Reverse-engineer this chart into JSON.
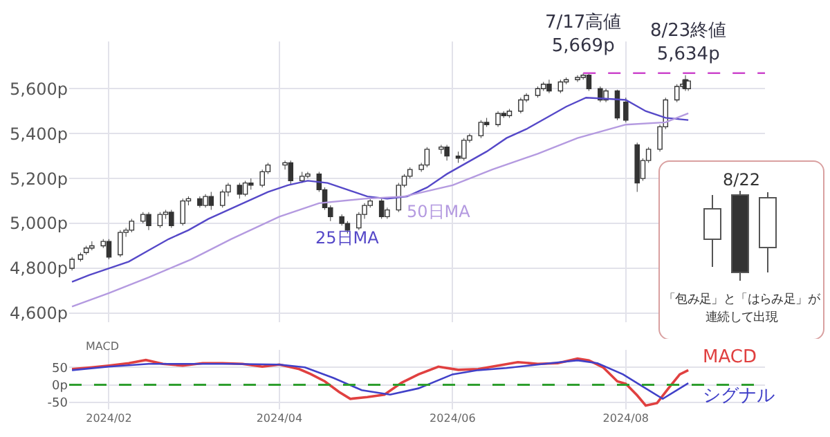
{
  "chart_data": [
    {
      "type": "candlestick",
      "color": "#333333",
      "xlim": [
        "2024-01-18",
        "2024-09-19"
      ],
      "xticks": [
        {
          "value": "2024-02-01",
          "label": null
        },
        {
          "value": "2024-04-01",
          "label": null
        },
        {
          "value": "2024-06-01",
          "label": null
        },
        {
          "value": "2024-08-01",
          "label": null
        }
      ],
      "tick_labels": "y",
      "ylim": [
        4560,
        5810
      ],
      "yticks": [
        {
          "value": 4600,
          "label": "4,600p"
        },
        {
          "value": 4800,
          "label": "4,800p"
        },
        {
          "value": 5000,
          "label": "5,000p"
        },
        {
          "value": 5200,
          "label": "5,200p"
        },
        {
          "value": 5400,
          "label": "5,400p"
        },
        {
          "value": 5600,
          "label": "5,600p"
        }
      ],
      "grid": true,
      "x": [
        "2024-01-19",
        "2024-01-22",
        "2024-01-24",
        "2024-01-26",
        "2024-01-30",
        "2024-02-01",
        "2024-02-05",
        "2024-02-07",
        "2024-02-09",
        "2024-02-13",
        "2024-02-15",
        "2024-02-19",
        "2024-02-21",
        "2024-02-23",
        "2024-02-27",
        "2024-02-29",
        "2024-03-04",
        "2024-03-06",
        "2024-03-08",
        "2024-03-12",
        "2024-03-14",
        "2024-03-18",
        "2024-03-20",
        "2024-03-22",
        "2024-03-26",
        "2024-03-28",
        "2024-04-03",
        "2024-04-05",
        "2024-04-09",
        "2024-04-11",
        "2024-04-15",
        "2024-04-17",
        "2024-04-19",
        "2024-04-23",
        "2024-04-25",
        "2024-04-29",
        "2024-05-01",
        "2024-05-03",
        "2024-05-07",
        "2024-05-09",
        "2024-05-13",
        "2024-05-15",
        "2024-05-17",
        "2024-05-21",
        "2024-05-23",
        "2024-05-28",
        "2024-05-30",
        "2024-06-03",
        "2024-06-05",
        "2024-06-07",
        "2024-06-11",
        "2024-06-13",
        "2024-06-17",
        "2024-06-19",
        "2024-06-21",
        "2024-06-25",
        "2024-06-27",
        "2024-07-01",
        "2024-07-03",
        "2024-07-05",
        "2024-07-09",
        "2024-07-11",
        "2024-07-15",
        "2024-07-17",
        "2024-07-19",
        "2024-07-23",
        "2024-07-25",
        "2024-07-29",
        "2024-08-01",
        "2024-08-05",
        "2024-08-07",
        "2024-08-09",
        "2024-08-13",
        "2024-08-15",
        "2024-08-19",
        "2024-08-21",
        "2024-08-22",
        "2024-08-23"
      ],
      "ohlc": [
        [
          4800,
          4850,
          4790,
          4840
        ],
        [
          4840,
          4870,
          4830,
          4860
        ],
        [
          4870,
          4900,
          4860,
          4890
        ],
        [
          4890,
          4920,
          4880,
          4900
        ],
        [
          4900,
          4930,
          4890,
          4920
        ],
        [
          4920,
          4930,
          4840,
          4850
        ],
        [
          4860,
          4970,
          4850,
          4960
        ],
        [
          4960,
          4980,
          4940,
          4970
        ],
        [
          4970,
          5020,
          4960,
          5010
        ],
        [
          5010,
          5050,
          5000,
          5040
        ],
        [
          5040,
          5050,
          4970,
          4990
        ],
        [
          4990,
          5050,
          4980,
          5040
        ],
        [
          5040,
          5060,
          5020,
          5050
        ],
        [
          5050,
          5060,
          4980,
          4990
        ],
        [
          5000,
          5110,
          4990,
          5100
        ],
        [
          5100,
          5120,
          5080,
          5110
        ],
        [
          5110,
          5120,
          5070,
          5080
        ],
        [
          5080,
          5130,
          5070,
          5120
        ],
        [
          5120,
          5140,
          5060,
          5080
        ],
        [
          5080,
          5150,
          5070,
          5140
        ],
        [
          5140,
          5180,
          5120,
          5170
        ],
        [
          5170,
          5180,
          5110,
          5130
        ],
        [
          5130,
          5190,
          5120,
          5180
        ],
        [
          5180,
          5200,
          5150,
          5170
        ],
        [
          5170,
          5240,
          5160,
          5230
        ],
        [
          5230,
          5270,
          5220,
          5260
        ],
        [
          5260,
          5280,
          5240,
          5270
        ],
        [
          5270,
          5280,
          5170,
          5190
        ],
        [
          5190,
          5230,
          5180,
          5210
        ],
        [
          5210,
          5230,
          5200,
          5220
        ],
        [
          5220,
          5230,
          5140,
          5150
        ],
        [
          5150,
          5160,
          5060,
          5070
        ],
        [
          5070,
          5080,
          5010,
          5030
        ],
        [
          5030,
          5040,
          4990,
          5000
        ],
        [
          5000,
          5010,
          4955,
          4970
        ],
        [
          4980,
          5050,
          4970,
          5040
        ],
        [
          5040,
          5090,
          5020,
          5080
        ],
        [
          5080,
          5110,
          5070,
          5100
        ],
        [
          5100,
          5110,
          5020,
          5030
        ],
        [
          5030,
          5070,
          5020,
          5060
        ],
        [
          5060,
          5180,
          5050,
          5170
        ],
        [
          5170,
          5220,
          5160,
          5210
        ],
        [
          5210,
          5250,
          5200,
          5240
        ],
        [
          5240,
          5270,
          5230,
          5260
        ],
        [
          5260,
          5340,
          5250,
          5330
        ],
        [
          5330,
          5350,
          5310,
          5340
        ],
        [
          5340,
          5350,
          5280,
          5300
        ],
        [
          5300,
          5320,
          5270,
          5290
        ],
        [
          5290,
          5380,
          5280,
          5370
        ],
        [
          5370,
          5400,
          5360,
          5390
        ],
        [
          5390,
          5460,
          5380,
          5450
        ],
        [
          5450,
          5470,
          5430,
          5440
        ],
        [
          5440,
          5500,
          5430,
          5490
        ],
        [
          5490,
          5500,
          5470,
          5480
        ],
        [
          5480,
          5510,
          5470,
          5500
        ],
        [
          5500,
          5560,
          5490,
          5550
        ],
        [
          5550,
          5580,
          5540,
          5570
        ],
        [
          5570,
          5610,
          5560,
          5600
        ],
        [
          5600,
          5630,
          5590,
          5620
        ],
        [
          5620,
          5640,
          5580,
          5590
        ],
        [
          5590,
          5640,
          5580,
          5630
        ],
        [
          5630,
          5650,
          5620,
          5640
        ],
        [
          5640,
          5660,
          5630,
          5650
        ],
        [
          5650,
          5669,
          5640,
          5660
        ],
        [
          5660,
          5665,
          5590,
          5600
        ],
        [
          5600,
          5610,
          5540,
          5550
        ],
        [
          5550,
          5600,
          5540,
          5590
        ],
        [
          5590,
          5595,
          5460,
          5470
        ],
        [
          5540,
          5560,
          5450,
          5460
        ],
        [
          5350,
          5360,
          5140,
          5180
        ],
        [
          5200,
          5290,
          5190,
          5280
        ],
        [
          5280,
          5340,
          5270,
          5330
        ],
        [
          5330,
          5440,
          5320,
          5430
        ],
        [
          5430,
          5560,
          5420,
          5550
        ],
        [
          5550,
          5620,
          5540,
          5610
        ],
        [
          5610,
          5640,
          5600,
          5620
        ],
        [
          5640,
          5660,
          5590,
          5600
        ],
        [
          5600,
          5640,
          5590,
          5634
        ]
      ],
      "series": [
        {
          "type": "line",
          "name": "25日MA",
          "color": "#5548c8",
          "x": [
            "2024-01-19",
            "2024-01-25",
            "2024-02-01",
            "2024-02-08",
            "2024-02-15",
            "2024-02-22",
            "2024-02-29",
            "2024-03-07",
            "2024-03-14",
            "2024-03-21",
            "2024-03-28",
            "2024-04-04",
            "2024-04-11",
            "2024-04-18",
            "2024-04-25",
            "2024-05-02",
            "2024-05-09",
            "2024-05-16",
            "2024-05-23",
            "2024-05-30",
            "2024-06-06",
            "2024-06-13",
            "2024-06-20",
            "2024-06-27",
            "2024-07-04",
            "2024-07-11",
            "2024-07-18",
            "2024-07-25",
            "2024-08-01",
            "2024-08-08",
            "2024-08-15",
            "2024-08-23"
          ],
          "values": [
            4740,
            4770,
            4800,
            4830,
            4880,
            4930,
            4970,
            5020,
            5060,
            5100,
            5140,
            5170,
            5190,
            5180,
            5150,
            5120,
            5110,
            5120,
            5160,
            5220,
            5270,
            5320,
            5380,
            5420,
            5470,
            5520,
            5560,
            5555,
            5550,
            5500,
            5470,
            5460
          ]
        },
        {
          "type": "line",
          "name": "50日MA",
          "color": "#b49ae0",
          "x": [
            "2024-01-19",
            "2024-02-01",
            "2024-02-15",
            "2024-03-01",
            "2024-03-15",
            "2024-04-01",
            "2024-04-15",
            "2024-05-01",
            "2024-05-15",
            "2024-06-01",
            "2024-06-15",
            "2024-07-01",
            "2024-07-15",
            "2024-08-01",
            "2024-08-15",
            "2024-08-23"
          ],
          "values": [
            4630,
            4690,
            4760,
            4840,
            4930,
            5030,
            5090,
            5110,
            5120,
            5170,
            5240,
            5310,
            5380,
            5440,
            5450,
            5490
          ]
        },
        {
          "type": "line",
          "color": "#cc44cc",
          "line_style": "dashed",
          "x": [
            "2024-07-17",
            "2024-09-19"
          ],
          "values": [
            5669,
            5669
          ]
        }
      ],
      "annotations": [
        {
          "text": "7/17高値\n5,669p",
          "x": "2024-07-17",
          "y": 5669
        },
        {
          "text": "8/23終値\n5,634p",
          "x": "2024-08-23",
          "y": 5634
        },
        "8/22",
        "「包み足」と「はらみ足」が連続して出現"
      ]
    },
    {
      "type": "line",
      "ylabel": "MACD",
      "xlim": [
        "2024-01-18",
        "2024-09-19"
      ],
      "xticks": [
        {
          "value": "2024-02-01",
          "label": "2024/02"
        },
        {
          "value": "2024-04-01",
          "label": "2024/04"
        },
        {
          "value": "2024-06-01",
          "label": "2024/06"
        },
        {
          "value": "2024-08-01",
          "label": "2024/08"
        }
      ],
      "ylim": [
        -70,
        100
      ],
      "yticks": [
        -50,
        {
          "value": 0,
          "label": "0p"
        },
        50
      ],
      "grid": true,
      "ref_lines": [
        {
          "axis": "y",
          "value": 0,
          "color": "#2e9e2e",
          "line_style": "dashed"
        }
      ],
      "series": [
        {
          "name": "MACD",
          "color": "#e04040",
          "x": [
            "2024-01-19",
            "2024-01-26",
            "2024-02-01",
            "2024-02-08",
            "2024-02-14",
            "2024-02-20",
            "2024-02-27",
            "2024-03-05",
            "2024-03-12",
            "2024-03-19",
            "2024-03-26",
            "2024-04-01",
            "2024-04-08",
            "2024-04-12",
            "2024-04-17",
            "2024-04-22",
            "2024-04-26",
            "2024-05-02",
            "2024-05-08",
            "2024-05-14",
            "2024-05-20",
            "2024-05-27",
            "2024-06-03",
            "2024-06-10",
            "2024-06-17",
            "2024-06-24",
            "2024-07-01",
            "2024-07-08",
            "2024-07-15",
            "2024-07-19",
            "2024-07-24",
            "2024-07-29",
            "2024-08-01",
            "2024-08-05",
            "2024-08-08",
            "2024-08-12",
            "2024-08-16",
            "2024-08-20",
            "2024-08-23"
          ],
          "values": [
            45,
            50,
            55,
            62,
            71,
            60,
            55,
            62,
            62,
            60,
            52,
            58,
            45,
            31,
            10,
            -20,
            -40,
            -35,
            -28,
            6,
            30,
            52,
            43,
            45,
            55,
            65,
            60,
            62,
            75,
            70,
            50,
            10,
            3,
            -30,
            -59,
            -52,
            -10,
            30,
            42
          ]
        },
        {
          "name": "シグナル",
          "color": "#4040c8",
          "x": [
            "2024-01-19",
            "2024-02-01",
            "2024-02-15",
            "2024-03-01",
            "2024-03-15",
            "2024-04-01",
            "2024-04-10",
            "2024-04-20",
            "2024-04-30",
            "2024-05-10",
            "2024-05-20",
            "2024-06-01",
            "2024-06-10",
            "2024-06-20",
            "2024-07-01",
            "2024-07-15",
            "2024-07-22",
            "2024-07-31",
            "2024-08-06",
            "2024-08-14",
            "2024-08-23"
          ],
          "values": [
            42,
            52,
            60,
            60,
            60,
            58,
            50,
            20,
            -15,
            -28,
            -10,
            30,
            42,
            48,
            58,
            70,
            62,
            30,
            0,
            -40,
            5
          ]
        }
      ]
    }
  ]
}
